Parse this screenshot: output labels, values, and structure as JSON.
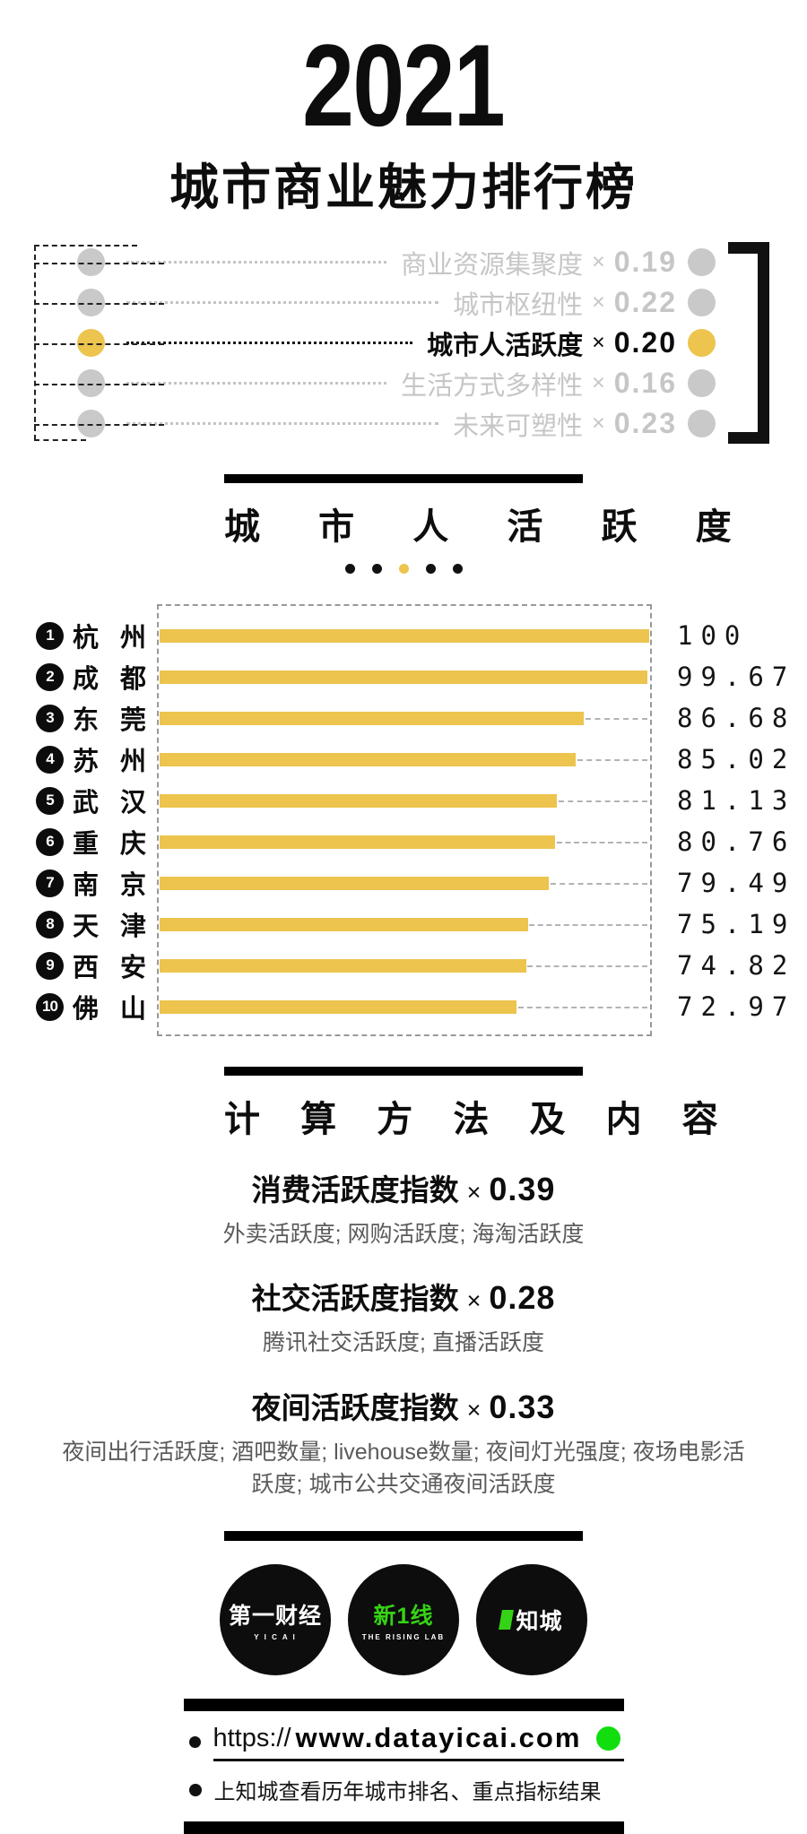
{
  "title": {
    "year": "2021",
    "name": "城市商业魅力排行榜"
  },
  "legend": {
    "items": [
      {
        "label": "商业资源集聚度",
        "times": "×",
        "weight": "0.19",
        "active": false
      },
      {
        "label": "城市枢纽性",
        "times": "×",
        "weight": "0.22",
        "active": false
      },
      {
        "label": "城市人活跃度",
        "times": "×",
        "weight": "0.20",
        "active": true
      },
      {
        "label": "生活方式多样性",
        "times": "×",
        "weight": "0.16",
        "active": false
      },
      {
        "label": "未来可塑性",
        "times": "×",
        "weight": "0.23",
        "active": false
      }
    ]
  },
  "section": {
    "title": "城 市 人 活 跃 度",
    "page_dots": {
      "count": 5,
      "active_index": 2
    }
  },
  "chart_data": {
    "type": "bar",
    "orientation": "horizontal",
    "title": "城市人活跃度",
    "categories": [
      "杭州",
      "成都",
      "东莞",
      "苏州",
      "武汉",
      "重庆",
      "南京",
      "天津",
      "西安",
      "佛山"
    ],
    "values": [
      100,
      99.67,
      86.68,
      85.02,
      81.13,
      80.76,
      79.49,
      75.19,
      74.82,
      72.97
    ],
    "xlim": [
      0,
      100
    ],
    "bar_color": "#ecc44e",
    "rows": [
      {
        "rank": "1",
        "city": "杭 州",
        "value": "100"
      },
      {
        "rank": "2",
        "city": "成 都",
        "value": "99.67"
      },
      {
        "rank": "3",
        "city": "东 莞",
        "value": "86.68"
      },
      {
        "rank": "4",
        "city": "苏 州",
        "value": "85.02"
      },
      {
        "rank": "5",
        "city": "武 汉",
        "value": "81.13"
      },
      {
        "rank": "6",
        "city": "重 庆",
        "value": "80.76"
      },
      {
        "rank": "7",
        "city": "南 京",
        "value": "79.49"
      },
      {
        "rank": "8",
        "city": "天 津",
        "value": "75.19"
      },
      {
        "rank": "9",
        "city": "西 安",
        "value": "74.82"
      },
      {
        "rank": "10",
        "city": "佛 山",
        "value": "72.97"
      }
    ]
  },
  "methods": {
    "section_title": "计 算 方 法 及 内 容",
    "items": [
      {
        "title": "消费活跃度指数",
        "times": "×",
        "weight": "0.39",
        "components": "外卖活跃度; 网购活跃度; 海淘活跃度"
      },
      {
        "title": "社交活跃度指数",
        "times": "×",
        "weight": "0.28",
        "components": "腾讯社交活跃度; 直播活跃度"
      },
      {
        "title": "夜间活跃度指数",
        "times": "×",
        "weight": "0.33",
        "components": "夜间出行活跃度; 酒吧数量; livehouse数量; 夜间灯光强度; 夜场电影活跃度; 城市公共交通夜间活跃度"
      }
    ]
  },
  "logos": [
    {
      "name": "第一财经",
      "sub": "Y I C A I"
    },
    {
      "name": "新1线",
      "sub": "THE RISING LAB"
    },
    {
      "name": "知城",
      "sub": ""
    }
  ],
  "footer": {
    "url_scheme": "https://",
    "url_domain": "www.datayicai.com",
    "note": "上知城查看历年城市排名、重点指标结果"
  },
  "colors": {
    "accent_yellow": "#ecc44e",
    "inactive_gray": "#c6c6c6",
    "green_dot": "#12de0e",
    "logo_green": "#35d315",
    "black": "#0d0d0d"
  }
}
